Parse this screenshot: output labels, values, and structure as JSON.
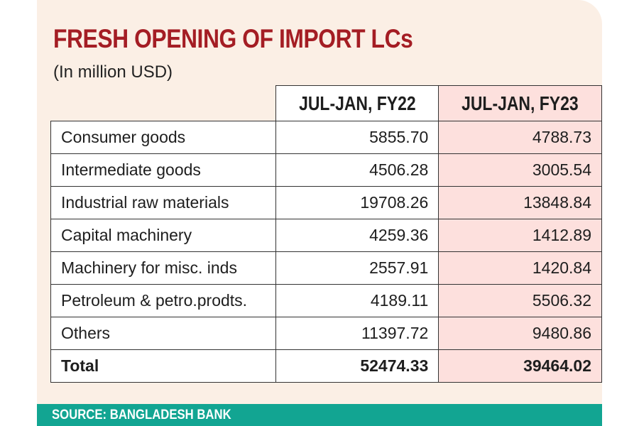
{
  "chart_data": {
    "type": "table",
    "title": "FRESH OPENING OF IMPORT LCs",
    "subtitle": "(In million USD)",
    "columns": [
      "JUL-JAN, FY22",
      "JUL-JAN, FY23"
    ],
    "rows": [
      {
        "label": "Consumer goods",
        "fy22": "5855.70",
        "fy23": "4788.73"
      },
      {
        "label": "Intermediate goods",
        "fy22": "4506.28",
        "fy23": "3005.54"
      },
      {
        "label": "Industrial raw materials",
        "fy22": "19708.26",
        "fy23": "13848.84"
      },
      {
        "label": "Capital machinery",
        "fy22": "4259.36",
        "fy23": "1412.89"
      },
      {
        "label": "Machinery for misc. inds",
        "fy22": "2557.91",
        "fy23": "1420.84"
      },
      {
        "label": "Petroleum & petro.prodts.",
        "fy22": "4189.11",
        "fy23": "5506.32"
      },
      {
        "label": "Others",
        "fy22": "11397.72",
        "fy23": "9480.86"
      },
      {
        "label": "Total",
        "fy22": "52474.33",
        "fy23": "39464.02"
      }
    ],
    "source": "SOURCE: BANGLADESH BANK"
  },
  "colors": {
    "title": "#a41d24",
    "background": "#fbefe5",
    "fy23_highlight": "#fde0dd",
    "footer": "#12a592"
  }
}
